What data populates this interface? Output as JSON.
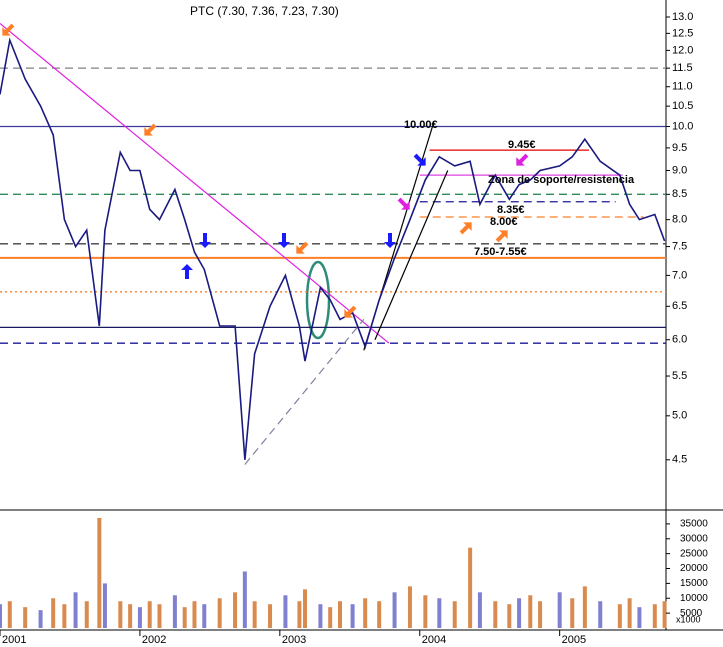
{
  "chart_data": [
    {
      "type": "line",
      "title": "PTC (7.30, 7.36, 7.23, 7.30)",
      "log_scale": true,
      "color": "#1a1a80",
      "x": [
        2001.0,
        2001.07,
        2001.18,
        2001.29,
        2001.38,
        2001.46,
        2001.54,
        2001.62,
        2001.71,
        2001.75,
        2001.86,
        2001.93,
        2002.0,
        2002.07,
        2002.14,
        2002.25,
        2002.32,
        2002.39,
        2002.46,
        2002.57,
        2002.68,
        2002.75,
        2002.82,
        2002.93,
        2003.04,
        2003.14,
        2003.18,
        2003.29,
        2003.36,
        2003.43,
        2003.52,
        2003.61,
        2003.71,
        2003.82,
        2003.93,
        2004.04,
        2004.14,
        2004.25,
        2004.36,
        2004.43,
        2004.54,
        2004.64,
        2004.71,
        2004.79,
        2004.86,
        2005.0,
        2005.09,
        2005.18,
        2005.29,
        2005.43,
        2005.5,
        2005.57,
        2005.68,
        2005.75
      ],
      "values": [
        10.8,
        12.3,
        11.2,
        10.5,
        9.8,
        8.0,
        7.5,
        7.8,
        6.2,
        7.8,
        9.4,
        9.0,
        9.0,
        8.2,
        8.0,
        8.6,
        8.0,
        7.4,
        7.1,
        6.2,
        6.2,
        4.5,
        5.8,
        6.5,
        7.0,
        6.2,
        5.7,
        6.8,
        6.6,
        6.3,
        6.4,
        5.9,
        6.6,
        7.3,
        8.0,
        8.8,
        9.3,
        9.1,
        9.2,
        8.3,
        8.9,
        8.4,
        8.7,
        8.8,
        9.0,
        9.1,
        9.3,
        9.7,
        9.2,
        8.9,
        8.3,
        8.0,
        8.1,
        7.6
      ],
      "xlim": [
        2001,
        2005.76
      ],
      "xticks": [
        2001,
        2002,
        2003,
        2004,
        2005
      ],
      "ylim": [
        3.99,
        13.54
      ],
      "yticks": [
        {
          "value": 4.5,
          "label": "4.5"
        },
        {
          "value": 5,
          "label": "5.0"
        },
        {
          "value": 5.5,
          "label": "5.5"
        },
        {
          "value": 6,
          "label": "6.0"
        },
        {
          "value": 6.5,
          "label": "6.5"
        },
        {
          "value": 7,
          "label": "7.0"
        },
        {
          "value": 7.5,
          "label": "7.5"
        },
        {
          "value": 8,
          "label": "8.0"
        },
        {
          "value": 8.5,
          "label": "8.5"
        },
        {
          "value": 9,
          "label": "9.0"
        },
        {
          "value": 9.5,
          "label": "9.5"
        },
        {
          "value": 10,
          "label": "10.0"
        },
        {
          "value": 10.5,
          "label": "10.5"
        },
        {
          "value": 11,
          "label": "11.0"
        },
        {
          "value": 11.5,
          "label": "11.5"
        },
        {
          "value": 12,
          "label": "12.0"
        },
        {
          "value": 12.5,
          "label": "12.5"
        },
        {
          "value": 13,
          "label": "13.0"
        }
      ],
      "levels": [
        {
          "value": 11.5,
          "color": "#808080",
          "style": "dashed"
        },
        {
          "value": 10.0,
          "color": "#3a3a9a",
          "style": "solid"
        },
        {
          "value": 8.5,
          "color": "#2e8b57",
          "style": "dashed"
        },
        {
          "value": 7.55,
          "color": "#404040",
          "style": "dashed"
        },
        {
          "value": 7.3,
          "color": "#ff7f27",
          "style": "solid"
        },
        {
          "value": 6.73,
          "color": "#ff7f27",
          "style": "dotted"
        },
        {
          "value": 6.18,
          "color": "#1a1a60",
          "style": "solid"
        },
        {
          "value": 5.95,
          "color": "#1a1a9a",
          "style": "dashed"
        },
        {
          "value": 9.45,
          "color": "#e00000",
          "style": "solid",
          "from": 2004.07,
          "to": 2005.21
        },
        {
          "value": 8.9,
          "color": "#e040e0",
          "style": "solid",
          "from": 2004.0,
          "to": 2005.45
        },
        {
          "value": 8.35,
          "color": "#1a1a9a",
          "style": "dashed",
          "from": 2004.0,
          "to": 2005.4
        },
        {
          "value": 8.05,
          "color": "#ff7f27",
          "style": "dashed",
          "from": 2004.0,
          "to": 2005.6
        }
      ],
      "trendlines": [
        {
          "x": [
            2001.0,
            2003.78
          ],
          "y": [
            12.8,
            5.95
          ],
          "color": "#e020e0",
          "style": "solid"
        },
        {
          "x": [
            2002.75,
            2003.6
          ],
          "y": [
            4.45,
            6.3
          ],
          "color": "#8080a0",
          "style": "dashed"
        },
        {
          "x": [
            2003.6,
            2004.1
          ],
          "y": [
            5.85,
            10.1
          ],
          "color": "#000000",
          "style": "solid"
        },
        {
          "x": [
            2003.68,
            2004.2
          ],
          "y": [
            6.0,
            9.0
          ],
          "color": "#000000",
          "style": "solid"
        }
      ],
      "annotations": [
        "10.00€",
        "9.45€",
        "Zona de soporte/resistencia",
        "8.35€",
        "8.00€",
        "7.50-7.55€"
      ]
    },
    {
      "type": "bar",
      "color": "#d98a4e",
      "volume_unit": "x1000",
      "x": [
        2001.0,
        2001.07,
        2001.18,
        2001.29,
        2001.38,
        2001.46,
        2001.54,
        2001.62,
        2001.71,
        2001.75,
        2001.86,
        2001.93,
        2002.0,
        2002.07,
        2002.14,
        2002.25,
        2002.32,
        2002.39,
        2002.46,
        2002.57,
        2002.68,
        2002.75,
        2002.82,
        2002.93,
        2003.04,
        2003.14,
        2003.18,
        2003.29,
        2003.36,
        2003.43,
        2003.52,
        2003.61,
        2003.71,
        2003.82,
        2003.93,
        2004.04,
        2004.14,
        2004.25,
        2004.36,
        2004.43,
        2004.54,
        2004.64,
        2004.71,
        2004.79,
        2004.86,
        2005.0,
        2005.09,
        2005.18,
        2005.29,
        2005.43,
        2005.5,
        2005.57,
        2005.68,
        2005.75
      ],
      "values": [
        8000,
        9000,
        7000,
        6000,
        10000,
        8000,
        12000,
        9000,
        37000,
        15000,
        9000,
        8000,
        7000,
        9000,
        8000,
        11000,
        7000,
        9000,
        8000,
        10000,
        12000,
        19000,
        9000,
        8000,
        11000,
        9000,
        13000,
        8000,
        7000,
        9000,
        8000,
        10000,
        9000,
        12000,
        14000,
        11000,
        10000,
        9000,
        27000,
        12000,
        9000,
        8000,
        10000,
        11000,
        9000,
        12000,
        10000,
        14000,
        9000,
        8000,
        10000,
        7000,
        8000,
        9000
      ],
      "ylim": [
        0,
        39000
      ],
      "yticks": [
        5000,
        10000,
        15000,
        20000,
        25000,
        30000,
        35000
      ]
    }
  ]
}
